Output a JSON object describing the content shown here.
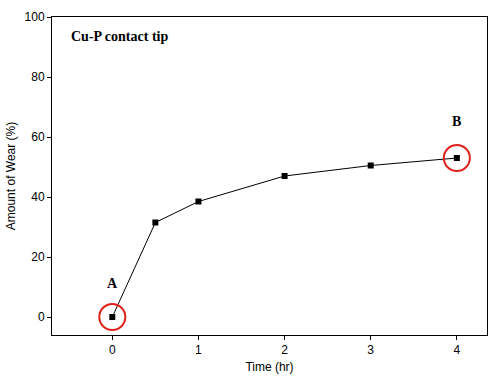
{
  "chart_data": {
    "type": "line",
    "title": "Cu-P contact tip",
    "x_label": "Time (hr)",
    "y_label": "Amount of Wear (%)",
    "x": [
      0,
      0.5,
      1,
      2,
      3,
      4
    ],
    "values": [
      0,
      31.5,
      38.5,
      47,
      50.5,
      53
    ],
    "color": "#000000",
    "marker": "square",
    "line_style": "solid",
    "xlim": [
      -0.7,
      4.35
    ],
    "xticks": [
      0,
      1,
      2,
      3,
      4
    ],
    "ylim": [
      -6,
      100
    ],
    "yticks": [
      0,
      20,
      40,
      60,
      80,
      100
    ],
    "grid": false,
    "annotations": [
      {
        "text": "A",
        "x": 0,
        "y": 8
      },
      {
        "text": "B",
        "x": 4,
        "y": 62
      }
    ]
  }
}
